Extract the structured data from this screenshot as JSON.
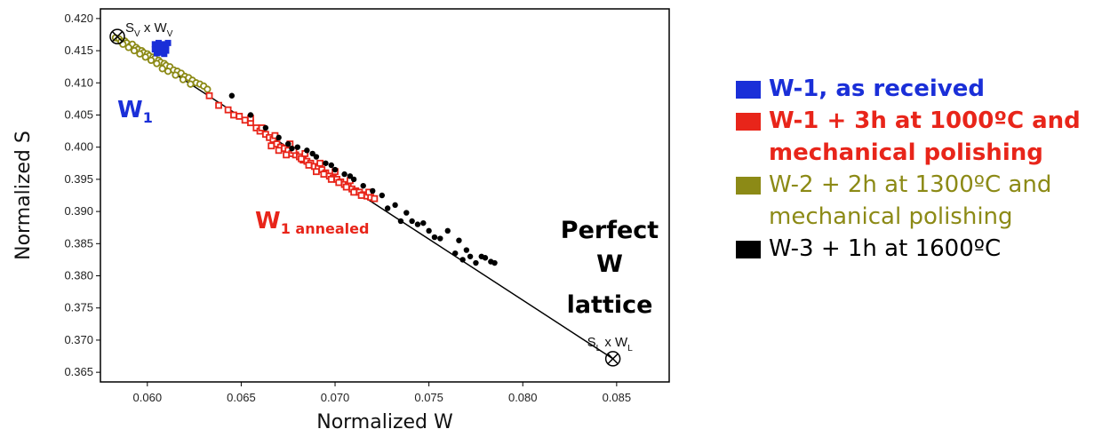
{
  "chart_data": {
    "type": "scatter",
    "xlabel": "Normalized W",
    "ylabel": "Normalized S",
    "xlim": [
      0.0575,
      0.0878
    ],
    "ylim": [
      0.3635,
      0.4215
    ],
    "x_ticks": [
      "0.060",
      "0.065",
      "0.070",
      "0.075",
      "0.080",
      "0.085"
    ],
    "y_ticks": [
      "0.365",
      "0.370",
      "0.375",
      "0.380",
      "0.385",
      "0.390",
      "0.395",
      "0.400",
      "0.405",
      "0.410",
      "0.415",
      "0.420"
    ],
    "fit_line": {
      "x": [
        0.0584,
        0.0848
      ],
      "y": [
        0.4172,
        0.3671
      ]
    },
    "reference_points": [
      {
        "label_main": "S",
        "label_sub1": "V",
        "label_mid": " x W",
        "label_sub2": "V",
        "x": 0.0584,
        "y": 0.4172
      },
      {
        "label_main": "S",
        "label_sub1": "L",
        "label_mid": " x W",
        "label_sub2": "L",
        "x": 0.0848,
        "y": 0.3671
      }
    ],
    "annotations": {
      "w1_main": "W",
      "w1_sub": "1",
      "w1a_main": "W",
      "w1a_sub": "1 annealed",
      "perfect_line1": "Perfect",
      "perfect_line2": "W",
      "perfect_line3": "lattice"
    },
    "series": [
      {
        "name": "W-1, as received",
        "color": "#1a2fd8",
        "marker": "square",
        "x": [
          0.0604,
          0.0605,
          0.0606,
          0.0607,
          0.0608,
          0.0609,
          0.061,
          0.0604,
          0.0606,
          0.0608,
          0.061,
          0.0605,
          0.0607,
          0.0609,
          0.0611,
          0.0606,
          0.0608
        ],
        "y": [
          0.416,
          0.4158,
          0.4162,
          0.4157,
          0.416,
          0.4155,
          0.4158,
          0.4152,
          0.415,
          0.4152,
          0.415,
          0.4146,
          0.4147,
          0.4145,
          0.4162,
          0.4154,
          0.4148
        ]
      },
      {
        "name": "W-1 + 3h at 1000ºC and mechanical polishing",
        "color": "#e8251a",
        "marker": "open-square",
        "x": [
          0.0633,
          0.0638,
          0.0643,
          0.0646,
          0.0649,
          0.0652,
          0.0655,
          0.0658,
          0.066,
          0.0663,
          0.0665,
          0.0667,
          0.0669,
          0.0671,
          0.0673,
          0.0675,
          0.0677,
          0.0679,
          0.0681,
          0.0683,
          0.0685,
          0.0687,
          0.0689,
          0.0691,
          0.0693,
          0.0695,
          0.0697,
          0.0699,
          0.0701,
          0.0703,
          0.0705,
          0.0707,
          0.0709,
          0.0711,
          0.0713,
          0.0715,
          0.0717,
          0.0719,
          0.0721,
          0.0666,
          0.067,
          0.0674,
          0.0678,
          0.0682,
          0.0686,
          0.069,
          0.0694,
          0.0698,
          0.0702,
          0.0706,
          0.071,
          0.0714,
          0.0718,
          0.0655,
          0.0661,
          0.0668,
          0.0676,
          0.0684,
          0.0692,
          0.07,
          0.0708
        ],
        "y": [
          0.408,
          0.4065,
          0.4058,
          0.405,
          0.4048,
          0.4042,
          0.4038,
          0.403,
          0.4025,
          0.402,
          0.4015,
          0.4012,
          0.4005,
          0.4,
          0.3998,
          0.3995,
          0.399,
          0.3988,
          0.3985,
          0.398,
          0.3978,
          0.3975,
          0.397,
          0.3968,
          0.3965,
          0.396,
          0.3955,
          0.3952,
          0.395,
          0.3946,
          0.3942,
          0.394,
          0.3935,
          0.3932,
          0.393,
          0.3926,
          0.3924,
          0.3922,
          0.392,
          0.4002,
          0.3995,
          0.3988,
          0.3995,
          0.3982,
          0.3972,
          0.3962,
          0.3958,
          0.395,
          0.3945,
          0.3938,
          0.393,
          0.3925,
          0.393,
          0.4045,
          0.403,
          0.4018,
          0.4005,
          0.399,
          0.3975,
          0.3962,
          0.3948
        ]
      },
      {
        "name": "W-2 + 2h at 1300ºC  and mechanical polishing",
        "color": "#8c8a16",
        "marker": "open-circle",
        "x": [
          0.0583,
          0.0585,
          0.0586,
          0.0588,
          0.0589,
          0.0591,
          0.0592,
          0.0594,
          0.0595,
          0.0597,
          0.0598,
          0.06,
          0.0601,
          0.0603,
          0.0604,
          0.0606,
          0.0607,
          0.0609,
          0.061,
          0.0612,
          0.0614,
          0.0616,
          0.0618,
          0.062,
          0.0622,
          0.0624,
          0.0626,
          0.0628,
          0.063,
          0.0632,
          0.0587,
          0.059,
          0.0593,
          0.0596,
          0.0599,
          0.0602,
          0.0605,
          0.0608,
          0.0611,
          0.0615,
          0.0619,
          0.0623
        ],
        "y": [
          0.417,
          0.4168,
          0.4164,
          0.4165,
          0.4162,
          0.4158,
          0.416,
          0.4155,
          0.4152,
          0.415,
          0.4147,
          0.4145,
          0.4142,
          0.414,
          0.4138,
          0.4135,
          0.4132,
          0.413,
          0.4127,
          0.4125,
          0.412,
          0.4118,
          0.4115,
          0.411,
          0.4108,
          0.4104,
          0.41,
          0.4098,
          0.4095,
          0.409,
          0.416,
          0.4155,
          0.415,
          0.4145,
          0.414,
          0.4135,
          0.413,
          0.4122,
          0.4118,
          0.4112,
          0.4105,
          0.4098
        ]
      },
      {
        "name": "W-3 + 1h at 1600ºC",
        "color": "#000000",
        "marker": "circle",
        "x": [
          0.0645,
          0.0655,
          0.0663,
          0.067,
          0.0675,
          0.068,
          0.0685,
          0.069,
          0.0695,
          0.07,
          0.0705,
          0.071,
          0.0715,
          0.072,
          0.0725,
          0.0728,
          0.0732,
          0.0735,
          0.0738,
          0.0741,
          0.0744,
          0.0747,
          0.075,
          0.0753,
          0.0756,
          0.076,
          0.0764,
          0.0766,
          0.0768,
          0.077,
          0.0772,
          0.0775,
          0.0778,
          0.078,
          0.0783,
          0.0785,
          0.0677,
          0.0688,
          0.0698,
          0.0708
        ],
        "y": [
          0.408,
          0.405,
          0.403,
          0.4015,
          0.4005,
          0.4,
          0.3995,
          0.3985,
          0.3975,
          0.3965,
          0.3958,
          0.395,
          0.394,
          0.3932,
          0.3925,
          0.3905,
          0.391,
          0.3885,
          0.3898,
          0.3885,
          0.388,
          0.3882,
          0.387,
          0.386,
          0.3858,
          0.387,
          0.3835,
          0.3855,
          0.3825,
          0.384,
          0.383,
          0.382,
          0.383,
          0.3828,
          0.3822,
          0.382,
          0.3998,
          0.399,
          0.3972,
          0.3955
        ]
      }
    ],
    "legend_position": "right"
  }
}
